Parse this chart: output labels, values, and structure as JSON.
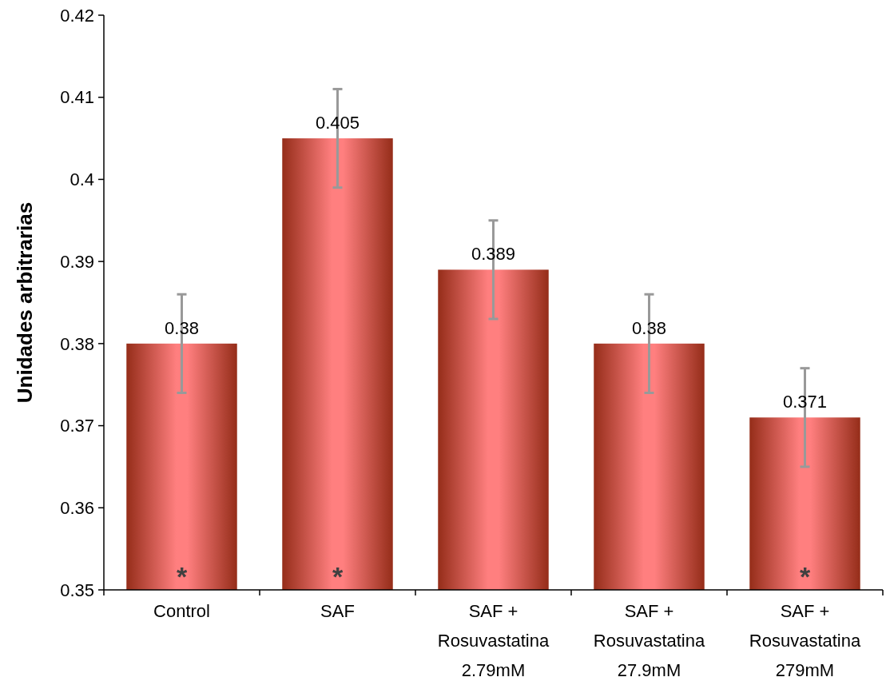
{
  "chart_data": {
    "type": "bar",
    "ylabel": "Unidades arbitrarias",
    "categories": [
      "Control",
      "SAF",
      "SAF +\nRosuvastatina\n2.79mM",
      "SAF +\nRosuvastatina\n27.9mM",
      "SAF +\nRosuvastatina\n279mM"
    ],
    "values": [
      0.38,
      0.405,
      0.389,
      0.38,
      0.371
    ],
    "errors": [
      0.006,
      0.006,
      0.006,
      0.006,
      0.006
    ],
    "color": "#ff7f7f",
    "ylim": [
      0.35,
      0.42
    ],
    "yticks": [
      0.35,
      0.36,
      0.37,
      0.38,
      0.39,
      {
        "value": 0.4,
        "label": "0.4"
      },
      0.41,
      0.42
    ],
    "data_labels": true,
    "grid": false,
    "annotations": [
      "*",
      "*",
      "*"
    ]
  }
}
